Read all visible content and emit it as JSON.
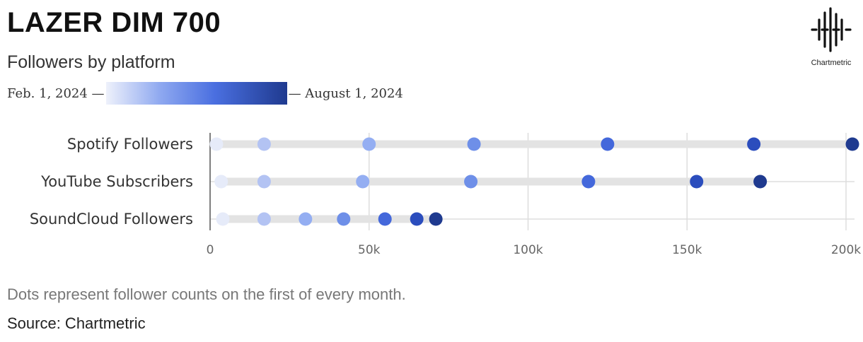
{
  "header": {
    "title": "LAZER DIM 700",
    "subtitle": "Followers by platform"
  },
  "legend": {
    "start_label": "Feb. 1, 2024 —",
    "end_label": "— August 1, 2024"
  },
  "logo": {
    "text": "Chartmetric",
    "icon": "waveform-icon"
  },
  "footer": {
    "note": "Dots represent follower counts on the first of every month.",
    "source": "Source: Chartmetric"
  },
  "colors": {
    "month_colors": [
      "#e6ebf9",
      "#b3c3f3",
      "#94aef2",
      "#6e8fe8",
      "#4468db",
      "#2b4dbd",
      "#1f3a8f"
    ],
    "track": "#e3e3e3",
    "grid": "#dddddd",
    "axis": "#555555"
  },
  "chart_data": {
    "type": "scatter",
    "title": "LAZER DIM 700",
    "subtitle": "Followers by platform",
    "x_ticks": [
      0,
      50000,
      100000,
      150000,
      200000
    ],
    "x_tick_labels": [
      "0",
      "50k",
      "100k",
      "150k",
      "200k"
    ],
    "xlim": [
      0,
      203000
    ],
    "categories": [
      "Spotify Followers",
      "YouTube Subscribers",
      "SoundCloud Followers"
    ],
    "dates": [
      "2024-02-01",
      "2024-03-01",
      "2024-04-01",
      "2024-05-01",
      "2024-06-01",
      "2024-07-01",
      "2024-08-01"
    ],
    "series": [
      {
        "name": "Spotify Followers",
        "values": [
          2000,
          17000,
          50000,
          83000,
          125000,
          171000,
          202000
        ]
      },
      {
        "name": "YouTube Subscribers",
        "values": [
          3500,
          17000,
          48000,
          82000,
          119000,
          153000,
          173000
        ]
      },
      {
        "name": "SoundCloud Followers",
        "values": [
          4000,
          17000,
          30000,
          42000,
          55000,
          65000,
          71000
        ]
      }
    ],
    "grid": true
  }
}
